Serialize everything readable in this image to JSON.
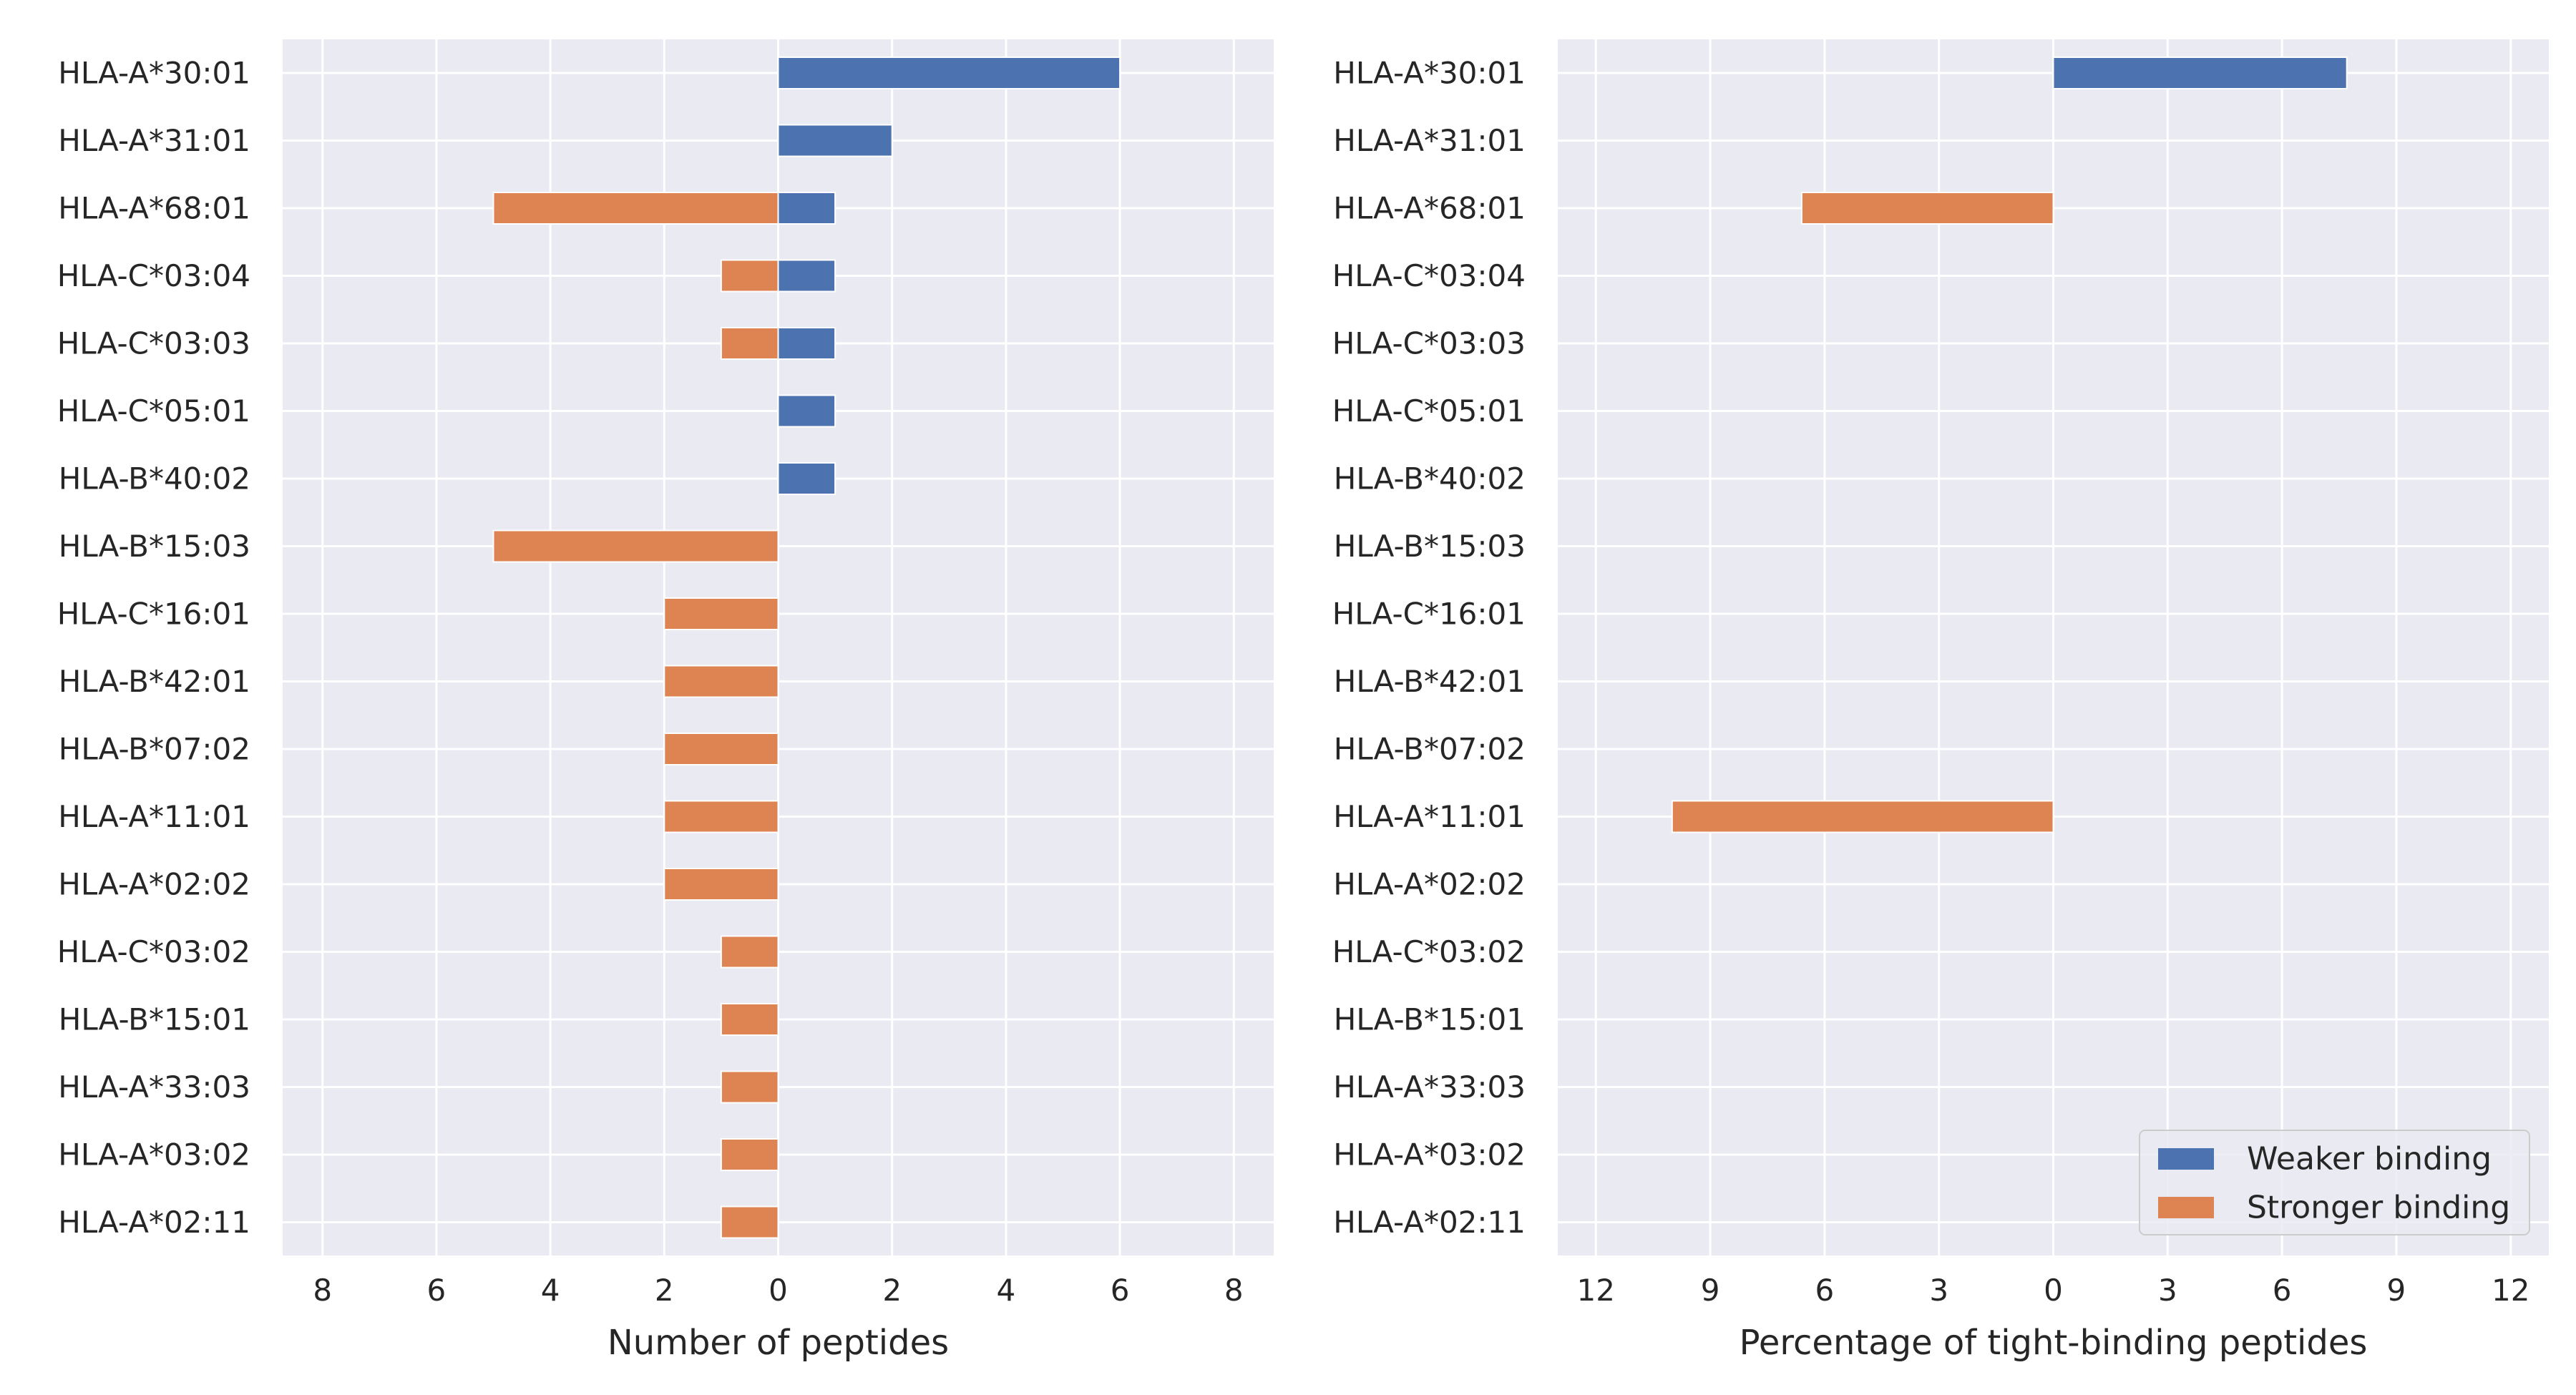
{
  "colors": {
    "weaker": "#4c72b0",
    "stronger": "#dd8452",
    "panel_bg": "#eaeaf2",
    "grid": "#ffffff"
  },
  "legend": {
    "placement": "lower-right",
    "entries": [
      "Weaker binding",
      "Stronger binding"
    ]
  },
  "chart_data": [
    {
      "type": "bar",
      "orientation": "horizontal",
      "title": "",
      "xlabel": "Number of peptides",
      "ylabel": "",
      "xlim": [
        -8.7,
        8.7
      ],
      "xticks": [
        -8,
        -6,
        -4,
        -2,
        0,
        2,
        4,
        6,
        8
      ],
      "xtick_labels": [
        "8",
        "6",
        "4",
        "2",
        "0",
        "2",
        "4",
        "6",
        "8"
      ],
      "grid": true,
      "categories": [
        "HLA-A*30:01",
        "HLA-A*31:01",
        "HLA-A*68:01",
        "HLA-C*03:04",
        "HLA-C*03:03",
        "HLA-C*05:01",
        "HLA-B*40:02",
        "HLA-B*15:03",
        "HLA-C*16:01",
        "HLA-B*42:01",
        "HLA-B*07:02",
        "HLA-A*11:01",
        "HLA-A*02:02",
        "HLA-C*03:02",
        "HLA-B*15:01",
        "HLA-A*33:03",
        "HLA-A*03:02",
        "HLA-A*02:11"
      ],
      "series": [
        {
          "name": "Weaker binding",
          "direction": "right",
          "values": [
            6,
            2,
            1,
            1,
            1,
            1,
            1,
            0,
            0,
            0,
            0,
            0,
            0,
            0,
            0,
            0,
            0,
            0
          ]
        },
        {
          "name": "Stronger binding",
          "direction": "left",
          "values": [
            0,
            0,
            5,
            1,
            1,
            0,
            0,
            5,
            2,
            2,
            2,
            2,
            2,
            1,
            1,
            1,
            1,
            1
          ]
        }
      ]
    },
    {
      "type": "bar",
      "orientation": "horizontal",
      "title": "",
      "xlabel": "Percentage of tight-binding peptides",
      "ylabel": "",
      "xlim": [
        -13,
        13
      ],
      "xticks": [
        -12,
        -9,
        -6,
        -3,
        0,
        3,
        6,
        9,
        12
      ],
      "xtick_labels": [
        "12",
        "9",
        "6",
        "3",
        "0",
        "3",
        "6",
        "9",
        "12"
      ],
      "grid": true,
      "categories": [
        "HLA-A*30:01",
        "HLA-A*31:01",
        "HLA-A*68:01",
        "HLA-C*03:04",
        "HLA-C*03:03",
        "HLA-C*05:01",
        "HLA-B*40:02",
        "HLA-B*15:03",
        "HLA-C*16:01",
        "HLA-B*42:01",
        "HLA-B*07:02",
        "HLA-A*11:01",
        "HLA-A*02:02",
        "HLA-C*03:02",
        "HLA-B*15:01",
        "HLA-A*33:03",
        "HLA-A*03:02",
        "HLA-A*02:11"
      ],
      "series": [
        {
          "name": "Weaker binding",
          "direction": "right",
          "values": [
            7.7,
            0,
            0,
            0,
            0,
            0,
            0,
            0,
            0,
            0,
            0,
            0,
            0,
            0,
            0,
            0,
            0,
            0
          ]
        },
        {
          "name": "Stronger binding",
          "direction": "left",
          "values": [
            0,
            0,
            6.6,
            0,
            0,
            0,
            0,
            0,
            0,
            0,
            0,
            10,
            0,
            0,
            0,
            0,
            0,
            0
          ]
        }
      ]
    }
  ]
}
